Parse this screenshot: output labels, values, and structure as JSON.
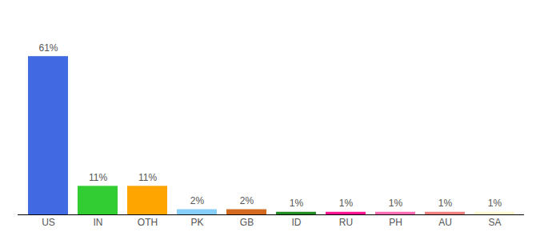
{
  "chart_data": {
    "type": "bar",
    "categories": [
      "US",
      "IN",
      "OTH",
      "PK",
      "GB",
      "ID",
      "RU",
      "PH",
      "AU",
      "SA"
    ],
    "values": [
      61,
      11,
      11,
      2,
      2,
      1,
      1,
      1,
      1,
      1
    ],
    "value_labels": [
      "61%",
      "11%",
      "11%",
      "2%",
      "2%",
      "1%",
      "1%",
      "1%",
      "1%",
      "1%"
    ],
    "colors": [
      "#4169e1",
      "#32cd32",
      "#ffa500",
      "#87cefa",
      "#d2691e",
      "#228b22",
      "#ff1493",
      "#ff69b4",
      "#f08080",
      "#fffacd"
    ],
    "ylim": [
      0,
      70
    ],
    "data_labels": true,
    "grid": false,
    "tick_labels": "x"
  }
}
